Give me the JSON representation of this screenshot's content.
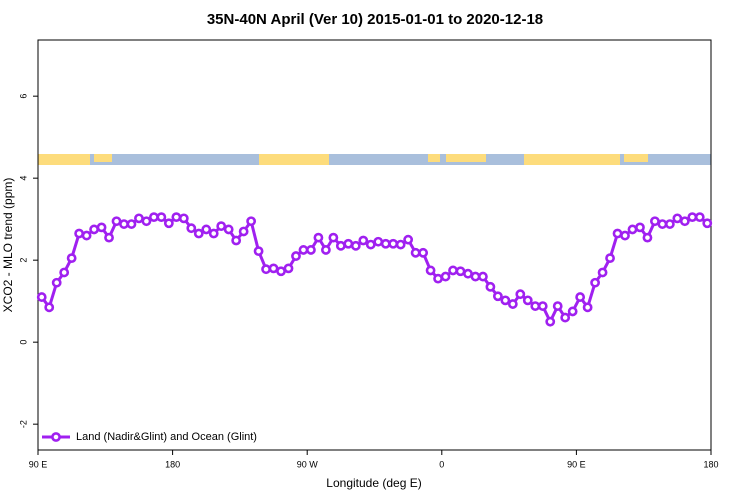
{
  "chart_data": {
    "type": "line",
    "title": "35N-40N April (Ver 10)   2015-01-01 to 2020-12-18",
    "x_label": "Longitude (deg E)",
    "y_label": "XCO2 - MLO trend (ppm)",
    "xlim": [
      90,
      540
    ],
    "ylim": [
      -2.63,
      7.37
    ],
    "xticks": [
      {
        "value": 90,
        "label": "90 E"
      },
      {
        "value": 180,
        "label": "180"
      },
      {
        "value": 270,
        "label": "90 W"
      },
      {
        "value": 360,
        "label": "0"
      },
      {
        "value": 450,
        "label": "90 E"
      },
      {
        "value": 540,
        "label": "180"
      }
    ],
    "yticks": [
      -2,
      0,
      2,
      4,
      6
    ],
    "legend_position": "bottom-left",
    "x": [
      92.5,
      97.5,
      102.5,
      107.5,
      112.5,
      117.5,
      122.5,
      127.5,
      132.5,
      137.5,
      142.5,
      147.5,
      152.5,
      157.5,
      162.5,
      167.5,
      172.5,
      177.5,
      182.5,
      187.5,
      192.5,
      197.5,
      202.5,
      207.5,
      212.5,
      217.5,
      222.5,
      227.5,
      232.5,
      237.5,
      242.5,
      247.5,
      252.5,
      257.5,
      262.5,
      267.5,
      272.5,
      277.5,
      282.5,
      287.5,
      292.5,
      297.5,
      302.5,
      307.5,
      312.5,
      317.5,
      322.5,
      327.5,
      332.5,
      337.5,
      342.5,
      347.5,
      352.5,
      357.5,
      362.5,
      367.5,
      372.5,
      377.5,
      382.5,
      387.5,
      392.5,
      397.5,
      402.5,
      407.5,
      412.5,
      417.5,
      422.5,
      427.5,
      432.5,
      437.5,
      442.5,
      447.5,
      452.5,
      457.5,
      462.5,
      467.5,
      472.5,
      477.5,
      482.5,
      487.5,
      492.5,
      497.5,
      502.5,
      507.5,
      512.5,
      517.5,
      522.5,
      527.5,
      532.5,
      537.5
    ],
    "series": [
      {
        "name": "Land (Nadir&Glint) and Ocean (Glint)",
        "color": "#a020f0",
        "values": [
          1.1,
          0.85,
          1.45,
          1.7,
          2.05,
          2.65,
          2.6,
          2.75,
          2.8,
          2.55,
          2.95,
          2.88,
          2.88,
          3.02,
          2.95,
          3.05,
          3.05,
          2.9,
          3.05,
          3.02,
          2.78,
          2.65,
          2.75,
          2.65,
          2.83,
          2.75,
          2.48,
          2.7,
          2.95,
          2.22,
          1.78,
          1.8,
          1.73,
          1.8,
          2.1,
          2.25,
          2.25,
          2.55,
          2.25,
          2.55,
          2.35,
          2.4,
          2.35,
          2.48,
          2.38,
          2.45,
          2.4,
          2.4,
          2.38,
          2.5,
          2.18,
          2.18,
          1.75,
          1.55,
          1.6,
          1.75,
          1.73,
          1.67,
          1.6,
          1.6,
          1.35,
          1.12,
          1.02,
          0.93,
          1.17,
          1.02,
          0.88,
          0.88,
          0.5,
          0.88,
          0.6,
          0.75,
          1.1,
          0.85,
          1.45,
          1.7,
          2.05,
          2.65,
          2.6,
          2.75,
          2.8,
          2.55,
          2.95,
          2.88,
          2.88,
          3.02,
          2.95,
          3.05,
          3.05,
          2.9
        ]
      }
    ]
  }
}
